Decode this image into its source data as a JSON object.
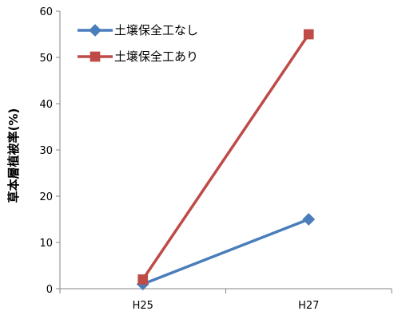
{
  "chart_data": {
    "type": "line",
    "categories": [
      "H25",
      "H27"
    ],
    "ylabel": "草本層植被率(%)",
    "ylim": [
      0,
      60
    ],
    "yticks": [
      0,
      10,
      20,
      30,
      40,
      50,
      60
    ],
    "grid": false,
    "legend_position": "top-left",
    "series": [
      {
        "name": "土壌保全工なし",
        "values": [
          1,
          15
        ],
        "color": "#4a7ebb",
        "marker": "diamond"
      },
      {
        "name": "土壌保全工あり",
        "values": [
          2,
          55
        ],
        "color": "#be4b48",
        "marker": "square"
      }
    ]
  }
}
